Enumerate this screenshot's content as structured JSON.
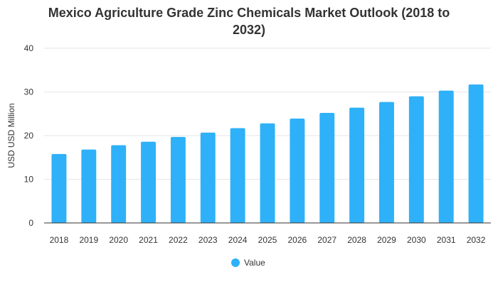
{
  "chart_data": {
    "type": "bar",
    "title_lines": [
      "Mexico Agriculture Grade Zinc Chemicals Market Outlook (2018 to",
      "2032)"
    ],
    "ylabel": "USD USD Million",
    "xlabel": "",
    "categories": [
      "2018",
      "2019",
      "2020",
      "2021",
      "2022",
      "2023",
      "2024",
      "2025",
      "2026",
      "2027",
      "2028",
      "2029",
      "2030",
      "2031",
      "2032"
    ],
    "series": [
      {
        "name": "Value",
        "color": "#2eb1f8",
        "values": [
          15.8,
          16.8,
          17.8,
          18.6,
          19.7,
          20.7,
          21.7,
          22.8,
          23.9,
          25.2,
          26.4,
          27.7,
          29.0,
          30.3,
          31.7
        ]
      }
    ],
    "ylim": [
      0,
      40
    ],
    "yticks": [
      0,
      10,
      20,
      30,
      40
    ],
    "grid": true,
    "legend_position": "bottom-center",
    "colors": {
      "bar": "#2eb1f8",
      "grid": "#e6e6e6",
      "axis": "#333333",
      "text": "#333333"
    }
  }
}
